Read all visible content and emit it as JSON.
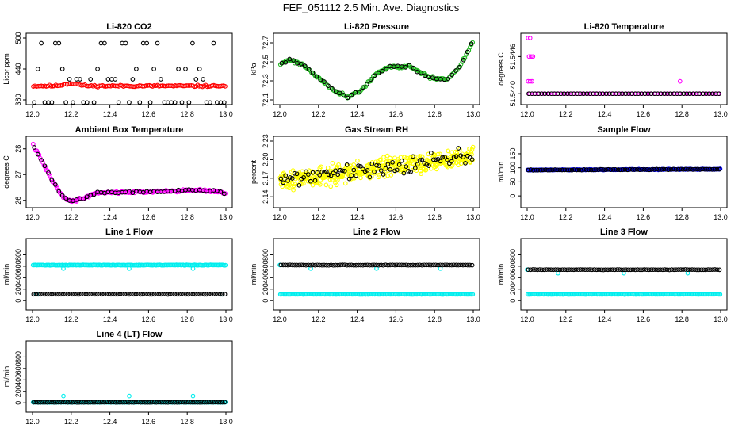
{
  "title": "FEF_051112  2.5 Min. Ave. Diagnostics",
  "colors": {
    "black": "#000000",
    "red": "#ff0000",
    "green": "#22bb22",
    "magenta": "#ff00ff",
    "yellow": "#ffff00",
    "blue": "#0000ff",
    "cyan": "#00eeee"
  },
  "chart_data": [
    {
      "type": "scatter",
      "title": "Li-820 CO2",
      "xlabel": "",
      "ylabel": "Licor ppm",
      "xlim": [
        12.0,
        13.0
      ],
      "ylim": [
        380,
        500
      ],
      "xticks": [
        12.0,
        12.2,
        12.4,
        12.6,
        12.8,
        13.0
      ],
      "yticks": [
        380,
        440,
        500
      ],
      "series": [
        {
          "name": "red",
          "color": "red",
          "gen": {
            "kind": "band",
            "n": 120,
            "y0": 407,
            "y1": 407,
            "noise": 1.5,
            "bump": {
              "x": 12.2,
              "h": 5,
              "w": 0.05
            },
            "seed": 11
          }
        },
        {
          "name": "black",
          "color": "black",
          "gen": {
            "kind": "levels",
            "n": 55,
            "levels": [
              375,
              420,
              440,
              490
            ],
            "weights": [
              0.35,
              0.25,
              0.15,
              0.25
            ],
            "seed": 12
          }
        }
      ]
    },
    {
      "type": "scatter",
      "title": "Li-820 Pressure",
      "xlabel": "",
      "ylabel": "kPa",
      "xlim": [
        12.0,
        13.0
      ],
      "ylim": [
        72.1,
        72.75
      ],
      "xticks": [
        12.0,
        12.2,
        12.4,
        12.6,
        12.8,
        13.0
      ],
      "yticks": [
        72.1,
        72.3,
        72.5,
        72.7
      ],
      "series": [
        {
          "name": "green",
          "color": "green",
          "gen": {
            "kind": "curve",
            "n": 150,
            "pts": [
              [
                12.0,
                72.48
              ],
              [
                12.05,
                72.52
              ],
              [
                12.12,
                72.47
              ],
              [
                12.2,
                72.33
              ],
              [
                12.28,
                72.2
              ],
              [
                12.35,
                72.13
              ],
              [
                12.42,
                72.2
              ],
              [
                12.5,
                72.38
              ],
              [
                12.57,
                72.45
              ],
              [
                12.62,
                72.44
              ],
              [
                12.67,
                72.46
              ],
              [
                12.73,
                72.38
              ],
              [
                12.8,
                72.32
              ],
              [
                12.87,
                72.32
              ],
              [
                12.93,
                72.45
              ],
              [
                13.0,
                72.72
              ]
            ],
            "noise": 0.012,
            "seed": 21
          }
        },
        {
          "name": "black",
          "color": "black",
          "gen": {
            "kind": "curve",
            "n": 50,
            "pts": [
              [
                12.0,
                72.48
              ],
              [
                12.05,
                72.52
              ],
              [
                12.12,
                72.47
              ],
              [
                12.2,
                72.33
              ],
              [
                12.28,
                72.2
              ],
              [
                12.35,
                72.13
              ],
              [
                12.42,
                72.2
              ],
              [
                12.5,
                72.38
              ],
              [
                12.57,
                72.45
              ],
              [
                12.62,
                72.44
              ],
              [
                12.67,
                72.46
              ],
              [
                12.73,
                72.38
              ],
              [
                12.8,
                72.32
              ],
              [
                12.87,
                72.32
              ],
              [
                12.93,
                72.45
              ],
              [
                13.0,
                72.72
              ]
            ],
            "noise": 0.01,
            "seed": 22
          }
        }
      ]
    },
    {
      "type": "scatter",
      "title": "Li-820 Temperature",
      "xlabel": "",
      "ylabel": "degrees C",
      "xlim": [
        12.0,
        13.0
      ],
      "ylim": [
        51.5439,
        51.5449
      ],
      "xticks": [
        12.0,
        12.2,
        12.4,
        12.6,
        12.8,
        13.0
      ],
      "yticks": [
        51.544,
        51.5446
      ],
      "series": [
        {
          "name": "magenta",
          "color": "magenta",
          "gen": {
            "kind": "list",
            "pts": [
              [
                12.005,
                51.5449
              ],
              [
                12.015,
                51.5449
              ],
              [
                12.01,
                51.5446
              ],
              [
                12.02,
                51.5446
              ],
              [
                12.03,
                51.5446
              ],
              [
                12.005,
                51.5442
              ],
              [
                12.015,
                51.5442
              ],
              [
                12.025,
                51.5442
              ],
              [
                12.79,
                51.5442
              ]
            ]
          }
        },
        {
          "name": "magenta-base",
          "color": "magenta",
          "gen": {
            "kind": "band",
            "n": 40,
            "y0": 51.544,
            "y1": 51.544,
            "noise": 0,
            "seed": 31
          }
        },
        {
          "name": "black",
          "color": "black",
          "gen": {
            "kind": "band",
            "n": 60,
            "y0": 51.544,
            "y1": 51.544,
            "noise": 0,
            "seed": 32
          }
        }
      ]
    },
    {
      "type": "scatter",
      "title": "Ambient Box Temperature",
      "xlabel": "",
      "ylabel": "degrees C",
      "xlim": [
        12.0,
        13.0
      ],
      "ylim": [
        25.9,
        28.3
      ],
      "xticks": [
        12.0,
        12.2,
        12.4,
        12.6,
        12.8,
        13.0
      ],
      "yticks": [
        26.0,
        27.0,
        28.0
      ],
      "series": [
        {
          "name": "magenta",
          "color": "magenta",
          "gen": {
            "kind": "curve",
            "n": 160,
            "pts": [
              [
                12.0,
                28.2
              ],
              [
                12.05,
                27.5
              ],
              [
                12.1,
                26.8
              ],
              [
                12.15,
                26.2
              ],
              [
                12.2,
                25.95
              ],
              [
                12.27,
                26.1
              ],
              [
                12.33,
                26.3
              ],
              [
                12.5,
                26.32
              ],
              [
                12.7,
                26.35
              ],
              [
                12.85,
                26.4
              ],
              [
                12.95,
                26.35
              ],
              [
                13.0,
                26.25
              ]
            ],
            "noise": 0.04,
            "seed": 41
          }
        },
        {
          "name": "black",
          "color": "black",
          "gen": {
            "kind": "curve",
            "n": 55,
            "pts": [
              [
                12.0,
                28.2
              ],
              [
                12.05,
                27.5
              ],
              [
                12.1,
                26.8
              ],
              [
                12.15,
                26.2
              ],
              [
                12.2,
                25.95
              ],
              [
                12.27,
                26.1
              ],
              [
                12.33,
                26.3
              ],
              [
                12.5,
                26.32
              ],
              [
                12.7,
                26.35
              ],
              [
                12.85,
                26.4
              ],
              [
                12.95,
                26.35
              ],
              [
                13.0,
                26.25
              ]
            ],
            "noise": 0.03,
            "seed": 42
          }
        }
      ]
    },
    {
      "type": "scatter",
      "title": "Gas Stream RH",
      "xlabel": "",
      "ylabel": "percent",
      "xlim": [
        12.0,
        13.0
      ],
      "ylim": [
        2.13,
        2.23
      ],
      "xticks": [
        12.0,
        12.2,
        12.4,
        12.6,
        12.8,
        13.0
      ],
      "yticks": [
        2.14,
        2.17,
        2.2,
        2.23
      ],
      "series": [
        {
          "name": "yellow",
          "color": "yellow",
          "gen": {
            "kind": "band",
            "n": 420,
            "y0": 2.165,
            "y1": 2.205,
            "noise": 0.013,
            "seed": 51
          }
        },
        {
          "name": "black",
          "color": "black",
          "gen": {
            "kind": "band",
            "n": 85,
            "y0": 2.167,
            "y1": 2.207,
            "noise": 0.011,
            "seed": 52
          }
        }
      ]
    },
    {
      "type": "scatter",
      "title": "Sample Flow",
      "xlabel": "",
      "ylabel": "ml/min",
      "xlim": [
        12.0,
        13.0
      ],
      "ylim": [
        -25,
        195
      ],
      "xticks": [
        12.0,
        12.2,
        12.4,
        12.6,
        12.8,
        13.0
      ],
      "yticks": [
        0,
        50,
        100,
        150
      ],
      "series": [
        {
          "name": "blue",
          "color": "blue",
          "gen": {
            "kind": "band",
            "n": 200,
            "y0": 92,
            "y1": 95,
            "noise": 1.2,
            "seed": 61
          }
        },
        {
          "name": "black",
          "color": "black",
          "gen": {
            "kind": "band",
            "n": 80,
            "y0": 92,
            "y1": 95,
            "noise": 1.0,
            "seed": 62
          }
        }
      ]
    },
    {
      "type": "scatter",
      "title": "Line 1 Flow",
      "xlabel": "",
      "ylabel": "ml/min",
      "xlim": [
        12.0,
        13.0
      ],
      "ylim": [
        -80,
        1000
      ],
      "xticks": [
        12.0,
        12.2,
        12.4,
        12.6,
        12.8,
        13.0
      ],
      "yticks": [
        0,
        200,
        400,
        600,
        800
      ],
      "series": [
        {
          "name": "cyan",
          "color": "cyan",
          "gen": {
            "kind": "band",
            "n": 170,
            "y0": 620,
            "y1": 620,
            "noise": 4,
            "seed": 71
          }
        },
        {
          "name": "cyan-dips",
          "color": "cyan",
          "gen": {
            "kind": "list",
            "pts": [
              [
                12.16,
                560
              ],
              [
                12.5,
                560
              ],
              [
                12.83,
                560
              ],
              [
                12.02,
                110
              ],
              [
                12.98,
                110
              ]
            ]
          }
        },
        {
          "name": "black",
          "color": "black",
          "gen": {
            "kind": "band",
            "n": 85,
            "y0": 110,
            "y1": 110,
            "noise": 2,
            "seed": 72
          }
        }
      ]
    },
    {
      "type": "scatter",
      "title": "Line 2 Flow",
      "xlabel": "",
      "ylabel": "ml/min",
      "xlim": [
        12.0,
        13.0
      ],
      "ylim": [
        -80,
        1000
      ],
      "xticks": [
        12.0,
        12.2,
        12.4,
        12.6,
        12.8,
        13.0
      ],
      "yticks": [
        0,
        200,
        400,
        600,
        800
      ],
      "series": [
        {
          "name": "cyan",
          "color": "cyan",
          "gen": {
            "kind": "band",
            "n": 170,
            "y0": 110,
            "y1": 110,
            "noise": 3,
            "seed": 81
          }
        },
        {
          "name": "cyan-top",
          "color": "cyan",
          "gen": {
            "kind": "list",
            "pts": [
              [
                12.0,
                620
              ],
              [
                12.16,
                560
              ],
              [
                12.5,
                560
              ],
              [
                12.83,
                560
              ]
            ]
          }
        },
        {
          "name": "black",
          "color": "black",
          "gen": {
            "kind": "band",
            "n": 85,
            "y0": 620,
            "y1": 620,
            "noise": 3,
            "seed": 82
          }
        }
      ]
    },
    {
      "type": "scatter",
      "title": "Line 3 Flow",
      "xlabel": "",
      "ylabel": "ml/min",
      "xlim": [
        12.0,
        13.0
      ],
      "ylim": [
        -80,
        1000
      ],
      "xticks": [
        12.0,
        12.2,
        12.4,
        12.6,
        12.8,
        13.0
      ],
      "yticks": [
        0,
        200,
        400,
        600,
        800
      ],
      "series": [
        {
          "name": "cyan",
          "color": "cyan",
          "gen": {
            "kind": "band",
            "n": 170,
            "y0": 110,
            "y1": 110,
            "noise": 3,
            "seed": 91
          }
        },
        {
          "name": "cyan-top",
          "color": "cyan",
          "gen": {
            "kind": "list",
            "pts": [
              [
                12.0,
                540
              ],
              [
                12.16,
                480
              ],
              [
                12.5,
                480
              ],
              [
                12.83,
                480
              ]
            ]
          }
        },
        {
          "name": "black",
          "color": "black",
          "gen": {
            "kind": "band",
            "n": 85,
            "y0": 540,
            "y1": 540,
            "noise": 3,
            "seed": 92
          }
        }
      ]
    },
    {
      "type": "scatter",
      "title": "Line 4 (LT) Flow",
      "xlabel": "",
      "ylabel": "ml/min",
      "xlim": [
        12.0,
        13.0
      ],
      "ylim": [
        -80,
        1000
      ],
      "xticks": [
        12.0,
        12.2,
        12.4,
        12.6,
        12.8,
        13.0
      ],
      "yticks": [
        0,
        200,
        400,
        600,
        800
      ],
      "series": [
        {
          "name": "cyan",
          "color": "cyan",
          "gen": {
            "kind": "band",
            "n": 170,
            "y0": 10,
            "y1": 10,
            "noise": 2,
            "seed": 101
          }
        },
        {
          "name": "cyan-spikes",
          "color": "cyan",
          "gen": {
            "kind": "list",
            "pts": [
              [
                12.16,
                120
              ],
              [
                12.5,
                120
              ],
              [
                12.83,
                120
              ]
            ]
          }
        },
        {
          "name": "black",
          "color": "black",
          "gen": {
            "kind": "band",
            "n": 85,
            "y0": 10,
            "y1": 10,
            "noise": 2,
            "seed": 102
          }
        }
      ]
    }
  ]
}
